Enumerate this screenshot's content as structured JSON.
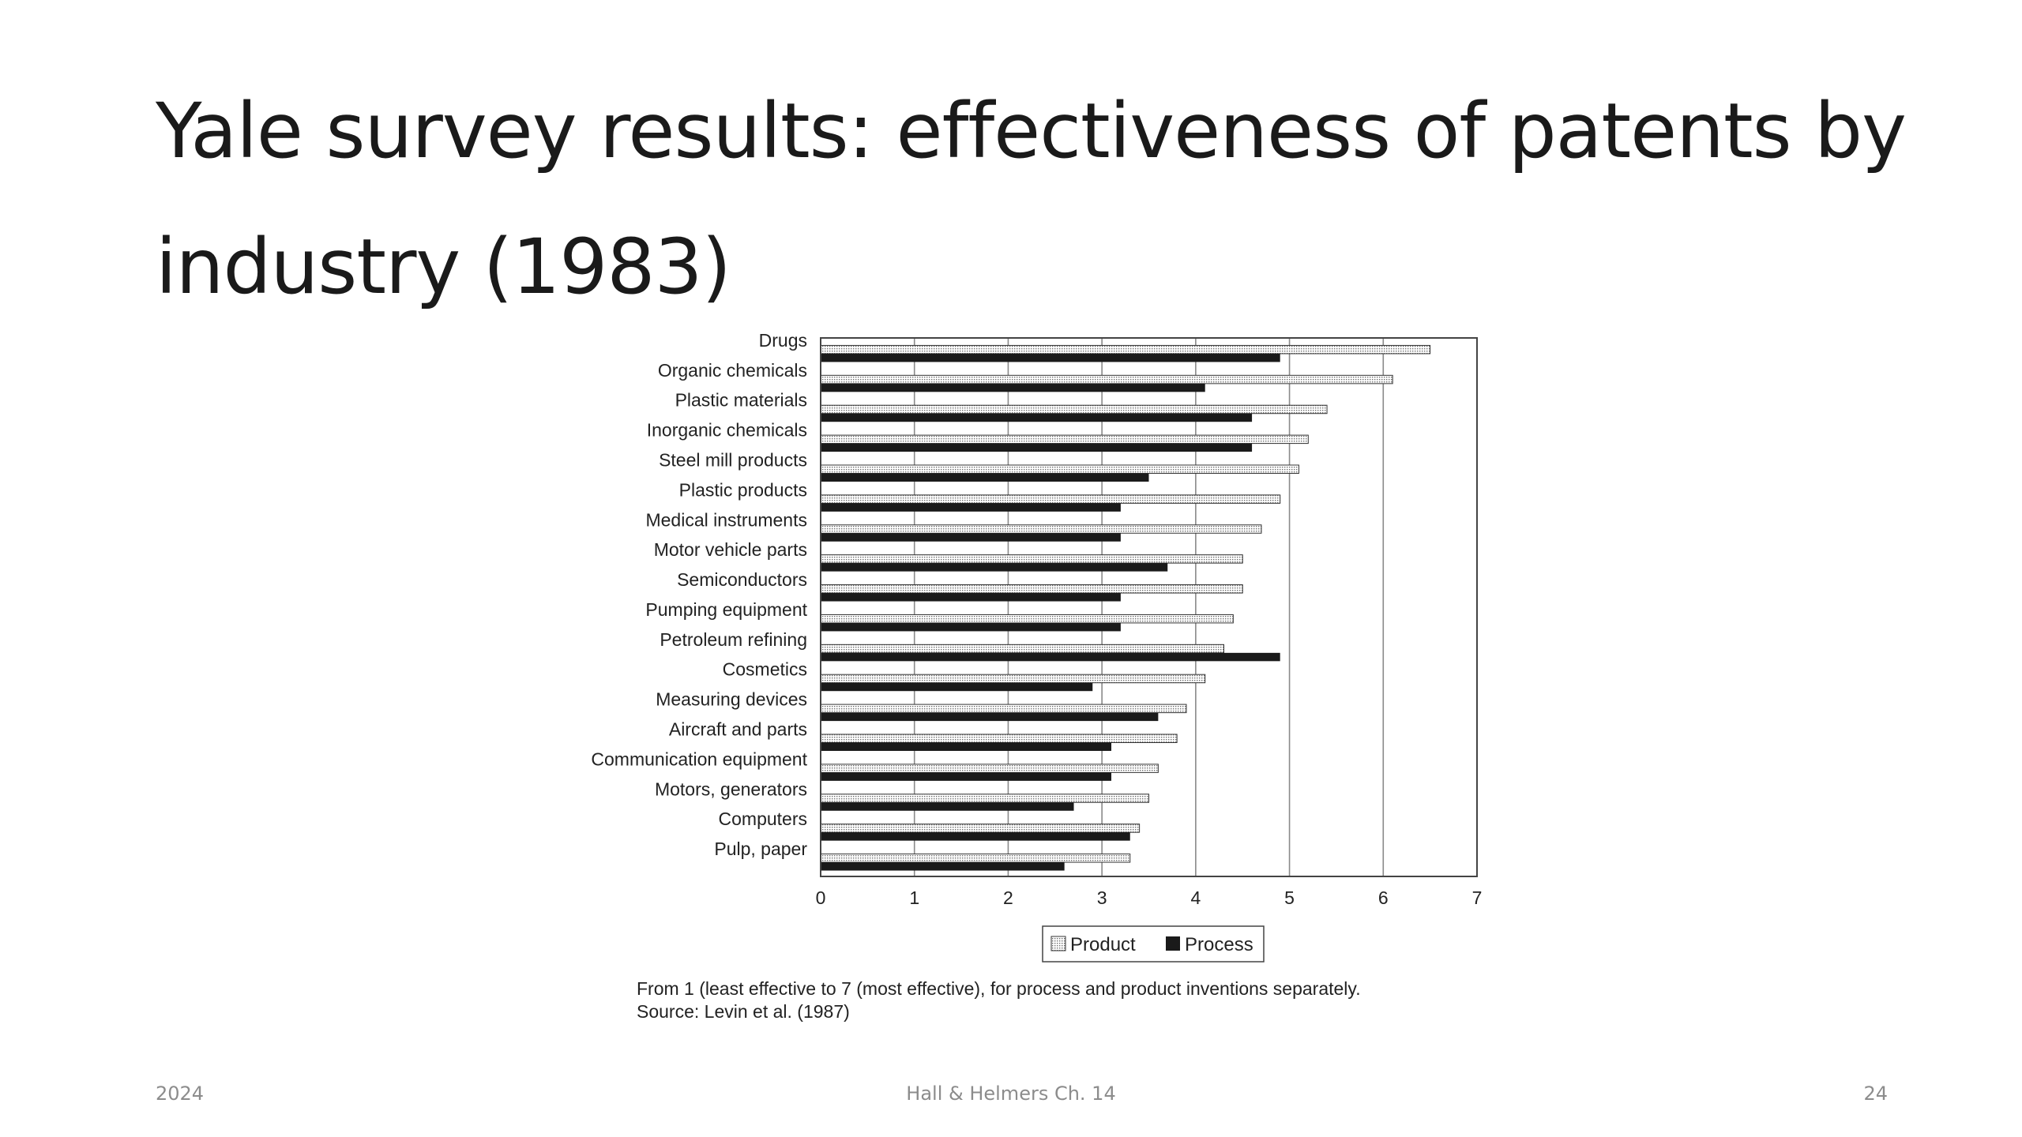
{
  "slide": {
    "title": "Yale survey results: effectiveness of patents by industry (1983)",
    "caption_line1": "From 1 (least effective to 7 (most effective), for process and product inventions separately.",
    "caption_line2": "Source: Levin et al. (1987)",
    "footer_left": "2024",
    "footer_center": "Hall & Helmers Ch. 14",
    "footer_right": "24"
  },
  "chart_data": {
    "type": "bar",
    "orientation": "horizontal",
    "categories": [
      "Drugs",
      "Organic chemicals",
      "Plastic materials",
      "Inorganic chemicals",
      "Steel mill products",
      "Plastic products",
      "Medical instruments",
      "Motor vehicle parts",
      "Semiconductors",
      "Pumping equipment",
      "Petroleum refining",
      "Cosmetics",
      "Measuring devices",
      "Aircraft and parts",
      "Communication equipment",
      "Motors, generators",
      "Computers",
      "Pulp, paper"
    ],
    "series": [
      {
        "name": "Product",
        "values": [
          6.5,
          6.1,
          5.4,
          5.2,
          5.1,
          4.9,
          4.7,
          4.5,
          4.5,
          4.4,
          4.3,
          4.1,
          3.9,
          3.8,
          3.6,
          3.5,
          3.4,
          3.3
        ],
        "pattern": "dotted"
      },
      {
        "name": "Process",
        "values": [
          4.9,
          4.1,
          4.6,
          4.6,
          3.5,
          3.2,
          3.2,
          3.7,
          3.2,
          3.2,
          4.9,
          2.9,
          3.6,
          3.1,
          3.1,
          2.7,
          3.3,
          2.6
        ],
        "pattern": "solid"
      }
    ],
    "xlim": [
      0,
      7
    ],
    "xticks": [
      0,
      1,
      2,
      3,
      4,
      5,
      6,
      7
    ],
    "grid": "vertical",
    "legend": "bottom-center",
    "colors": {
      "process": "#1a1a1a",
      "product_fill": "#ffffff",
      "product_dot": "#6f6f6f",
      "grid": "#8a8a8a"
    }
  }
}
